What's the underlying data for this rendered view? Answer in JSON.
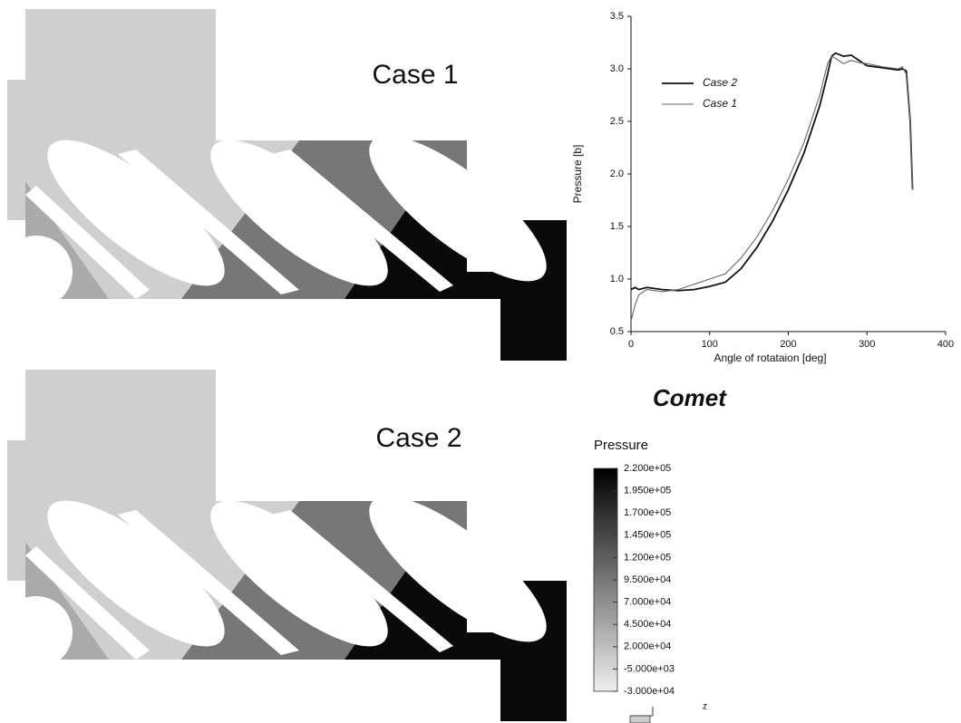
{
  "chart_data": {
    "type": "line",
    "xlabel": "Angle of rotataion [deg]",
    "ylabel": "Pressure [b]",
    "xlim": [
      0,
      400
    ],
    "xticks": [
      0,
      100,
      200,
      300,
      400
    ],
    "ylim": [
      0.5,
      3.5
    ],
    "yticks": [
      0.5,
      {
        "value": 1,
        "label": "1.0"
      },
      1.5,
      {
        "value": 2,
        "label": "2.0"
      },
      2.5,
      {
        "value": 3,
        "label": "3.0"
      },
      3.5
    ],
    "legend": "upper left",
    "x": [
      0,
      5,
      10,
      20,
      40,
      60,
      80,
      100,
      120,
      140,
      160,
      180,
      200,
      220,
      240,
      250,
      255,
      260,
      270,
      280,
      290,
      300,
      320,
      340,
      345,
      350,
      355,
      358
    ],
    "series": [
      {
        "name": "Case 2",
        "color": "#111111",
        "values": [
          0.9,
          0.92,
          0.9,
          0.92,
          0.9,
          0.89,
          0.9,
          0.93,
          0.97,
          1.1,
          1.3,
          1.55,
          1.85,
          2.2,
          2.65,
          2.95,
          3.12,
          3.15,
          3.12,
          3.13,
          3.08,
          3.03,
          3.01,
          2.99,
          3.0,
          2.98,
          2.5,
          1.85
        ]
      },
      {
        "name": "Case 1",
        "color": "#666666",
        "values": [
          0.6,
          0.75,
          0.85,
          0.9,
          0.88,
          0.9,
          0.95,
          1.0,
          1.05,
          1.2,
          1.4,
          1.65,
          1.95,
          2.3,
          2.75,
          3.05,
          3.12,
          3.1,
          3.05,
          3.08,
          3.06,
          3.05,
          3.02,
          3.0,
          3.02,
          2.95,
          2.5,
          1.85
        ]
      }
    ]
  },
  "panels": [
    {
      "label": "Case 1"
    },
    {
      "label": "Case 2"
    }
  ],
  "logo": "Comet",
  "colorbar": {
    "title": "Pressure",
    "ticks": [
      {
        "value": 220000,
        "label": "2.200e+05"
      },
      {
        "value": 195000,
        "label": "1.950e+05"
      },
      {
        "value": 170000,
        "label": "1.700e+05"
      },
      {
        "value": 145000,
        "label": "1.450e+05"
      },
      {
        "value": 120000,
        "label": "1.200e+05"
      },
      {
        "value": 95000,
        "label": "9.500e+04"
      },
      {
        "value": 70000,
        "label": "7.000e+04"
      },
      {
        "value": 45000,
        "label": "4.500e+04"
      },
      {
        "value": 20000,
        "label": "2.000e+04"
      },
      {
        "value": -5000,
        "label": "-5.000e+03"
      },
      {
        "value": -30000,
        "label": "-3.000e+04"
      }
    ]
  },
  "triad": {
    "axis": "z"
  }
}
